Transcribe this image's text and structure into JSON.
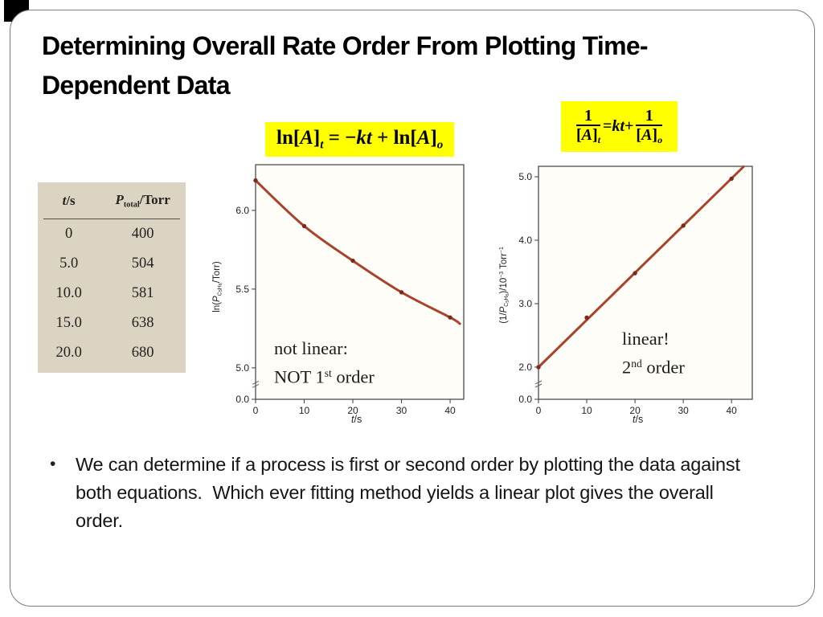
{
  "slide": {
    "title_line1": "Determining Overall Rate Order From Plotting Time-",
    "title_line2": "Dependent Data",
    "bullet_glyph": "•",
    "bullet_text": "We can determine if a process is first or second order by plotting the data against both equations.  Which ever fitting method yields a linear plot gives the overall order."
  },
  "equations": {
    "highlight_color": "#ffff00",
    "eq1_plain": "ln[A]t = −kt + ln[A]o",
    "eq1_tokens": [
      {
        "t": "ln["
      },
      {
        "t": "A",
        "i": true
      },
      {
        "t": "]"
      },
      {
        "t": "t",
        "i": true,
        "sub": 1
      },
      {
        "t": " = −"
      },
      {
        "t": "kt",
        "i": true
      },
      {
        "t": " + ln["
      },
      {
        "t": "A",
        "i": true
      },
      {
        "t": "]"
      },
      {
        "t": "o",
        "i": true,
        "sub": 1
      }
    ],
    "eq2_plain": "1/[A]t = kt + 1/[A]o",
    "eq2_tokens": [
      {
        "frac": {
          "num": [
            {
              "t": "1"
            }
          ],
          "den": [
            {
              "t": "["
            },
            {
              "t": "A",
              "i": true
            },
            {
              "t": "]"
            },
            {
              "t": "t",
              "i": true,
              "sub": 1
            }
          ]
        }
      },
      {
        "t": " = "
      },
      {
        "t": "kt",
        "i": true
      },
      {
        "t": " + "
      },
      {
        "frac": {
          "num": [
            {
              "t": "1"
            }
          ],
          "den": [
            {
              "t": "["
            },
            {
              "t": "A",
              "i": true
            },
            {
              "t": "]"
            },
            {
              "t": "o",
              "i": true,
              "sub": 1
            }
          ]
        }
      }
    ]
  },
  "data_table": {
    "bg_color": "#dcd4c3",
    "headers_plain": [
      "t/s",
      "Ptotal/Torr"
    ],
    "header1_tokens": [
      {
        "t": "t",
        "i": true
      },
      {
        "t": "/s"
      }
    ],
    "header2_tokens": [
      {
        "t": "P",
        "i": true
      },
      {
        "t": "total",
        "sub": 1
      },
      {
        "t": "/Torr"
      }
    ],
    "rows": [
      [
        "0",
        "400"
      ],
      [
        "5.0",
        "504"
      ],
      [
        "10.0",
        "581"
      ],
      [
        "15.0",
        "638"
      ],
      [
        "20.0",
        "680"
      ]
    ]
  },
  "chart_data": [
    {
      "type": "line",
      "name": "first-order-test-plot",
      "title": "",
      "xlabel": "t/s",
      "ylabel": "ln(P_C5H6/Torr)",
      "x": [
        0,
        10,
        20,
        30,
        40
      ],
      "y": [
        6.19,
        5.9,
        5.68,
        5.48,
        5.32
      ],
      "curve": "smooth",
      "extend": {
        "x": 42,
        "y": 5.28
      },
      "xlim": [
        0,
        42.8
      ],
      "xticks": [
        "0",
        "10",
        "20",
        "30",
        "40"
      ],
      "yticks": [
        {
          "v": 5.0,
          "label": "5.0"
        },
        {
          "v": 5.5,
          "label": "5.5"
        },
        {
          "v": 6.0,
          "label": "6.0"
        }
      ],
      "ylim_linear": [
        5.0,
        6.29
      ],
      "axis_break": true,
      "break_label": "0.0",
      "grid": false,
      "legend": "none",
      "line_color": "#a8432c",
      "point_color": "#7d2a19",
      "bg": "#fffdf8",
      "xlabel_tokens": [
        {
          "t": "t",
          "i": true
        },
        {
          "t": "/s"
        }
      ],
      "ylabel_tokens": [
        {
          "t": "ln("
        },
        {
          "t": "P",
          "i": true
        },
        {
          "t": "C",
          "sub": 1
        },
        {
          "t": "5",
          "sub": 2
        },
        {
          "t": "H",
          "sub": 1
        },
        {
          "t": "6",
          "sub": 2
        },
        {
          "t": "/Torr)"
        }
      ]
    },
    {
      "type": "line",
      "name": "second-order-test-plot",
      "title": "",
      "xlabel": "t/s",
      "ylabel": "(1/P_C5H6)/10^-3 Torr^-1",
      "x": [
        0,
        10,
        20,
        30,
        40
      ],
      "y": [
        2.0,
        2.78,
        3.48,
        4.23,
        4.97
      ],
      "curve": "straight",
      "extend": {
        "x": 42.5,
        "y": 5.16
      },
      "xlim": [
        0,
        44.3
      ],
      "xticks": [
        "0",
        "10",
        "20",
        "30",
        "40"
      ],
      "yticks": [
        {
          "v": 2.0,
          "label": "2.0"
        },
        {
          "v": 3.0,
          "label": "3.0"
        },
        {
          "v": 4.0,
          "label": "4.0"
        },
        {
          "v": 5.0,
          "label": "5.0"
        }
      ],
      "ylim_linear": [
        2.0,
        5.165
      ],
      "axis_break": true,
      "break_label": "0.0",
      "grid": false,
      "legend": "none",
      "line_color": "#a8432c",
      "point_color": "#7d2a19",
      "bg": "#fffdf8",
      "xlabel_tokens": [
        {
          "t": "t",
          "i": true
        },
        {
          "t": "/s"
        }
      ],
      "ylabel_tokens": [
        {
          "t": "(1/"
        },
        {
          "t": "P",
          "i": true
        },
        {
          "t": "C",
          "sub": 1
        },
        {
          "t": "5",
          "sub": 2
        },
        {
          "t": "H",
          "sub": 1
        },
        {
          "t": "6",
          "sub": 2
        },
        {
          "t": ")/10"
        },
        {
          "t": "−3",
          "sup": 1
        },
        {
          "t": " Torr"
        },
        {
          "t": "−1",
          "sup": 1
        }
      ]
    }
  ],
  "annotations": {
    "left_plain": "not linear: NOT 1st order",
    "left_line1": [
      {
        "t": "not linear:"
      }
    ],
    "left_line2": [
      {
        "t": "NOT 1"
      },
      {
        "t": "st",
        "sup": 1
      },
      {
        "t": " order"
      }
    ],
    "right_plain": "linear! 2nd order",
    "right_line1": [
      {
        "t": "linear!"
      }
    ],
    "right_line2": [
      {
        "t": "2"
      },
      {
        "t": "nd",
        "sup": 1
      },
      {
        "t": " order"
      }
    ]
  }
}
